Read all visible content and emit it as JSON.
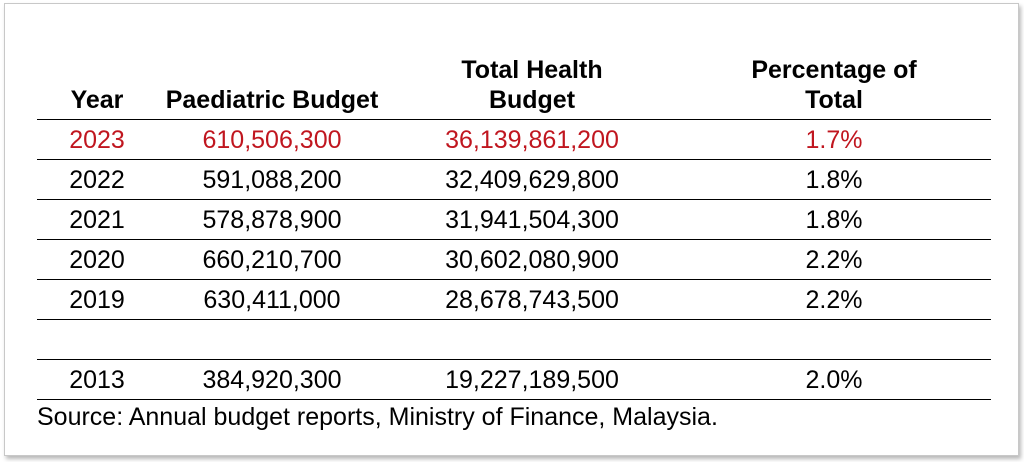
{
  "table": {
    "headers": [
      "Year",
      "Paediatric Budget",
      "Total Health Budget",
      "Percentage of Total"
    ],
    "highlight_color": "#c0161f",
    "rows": [
      [
        "2023",
        "610,506,300",
        "36,139,861,200",
        "1.7%"
      ],
      [
        "2022",
        "591,088,200",
        "32,409,629,800",
        "1.8%"
      ],
      [
        "2021",
        "578,878,900",
        "31,941,504,300",
        "1.8%"
      ],
      [
        "2020",
        "660,210,700",
        "30,602,080,900",
        "2.2%"
      ],
      [
        "2019",
        "630,411,000",
        "28,678,743,500",
        "2.2%"
      ],
      [
        "",
        "",
        "",
        ""
      ],
      [
        "2013",
        "384,920,300",
        "19,227,189,500",
        "2.0%"
      ]
    ]
  },
  "source": "Source: Annual budget reports, Ministry of Finance, Malaysia."
}
